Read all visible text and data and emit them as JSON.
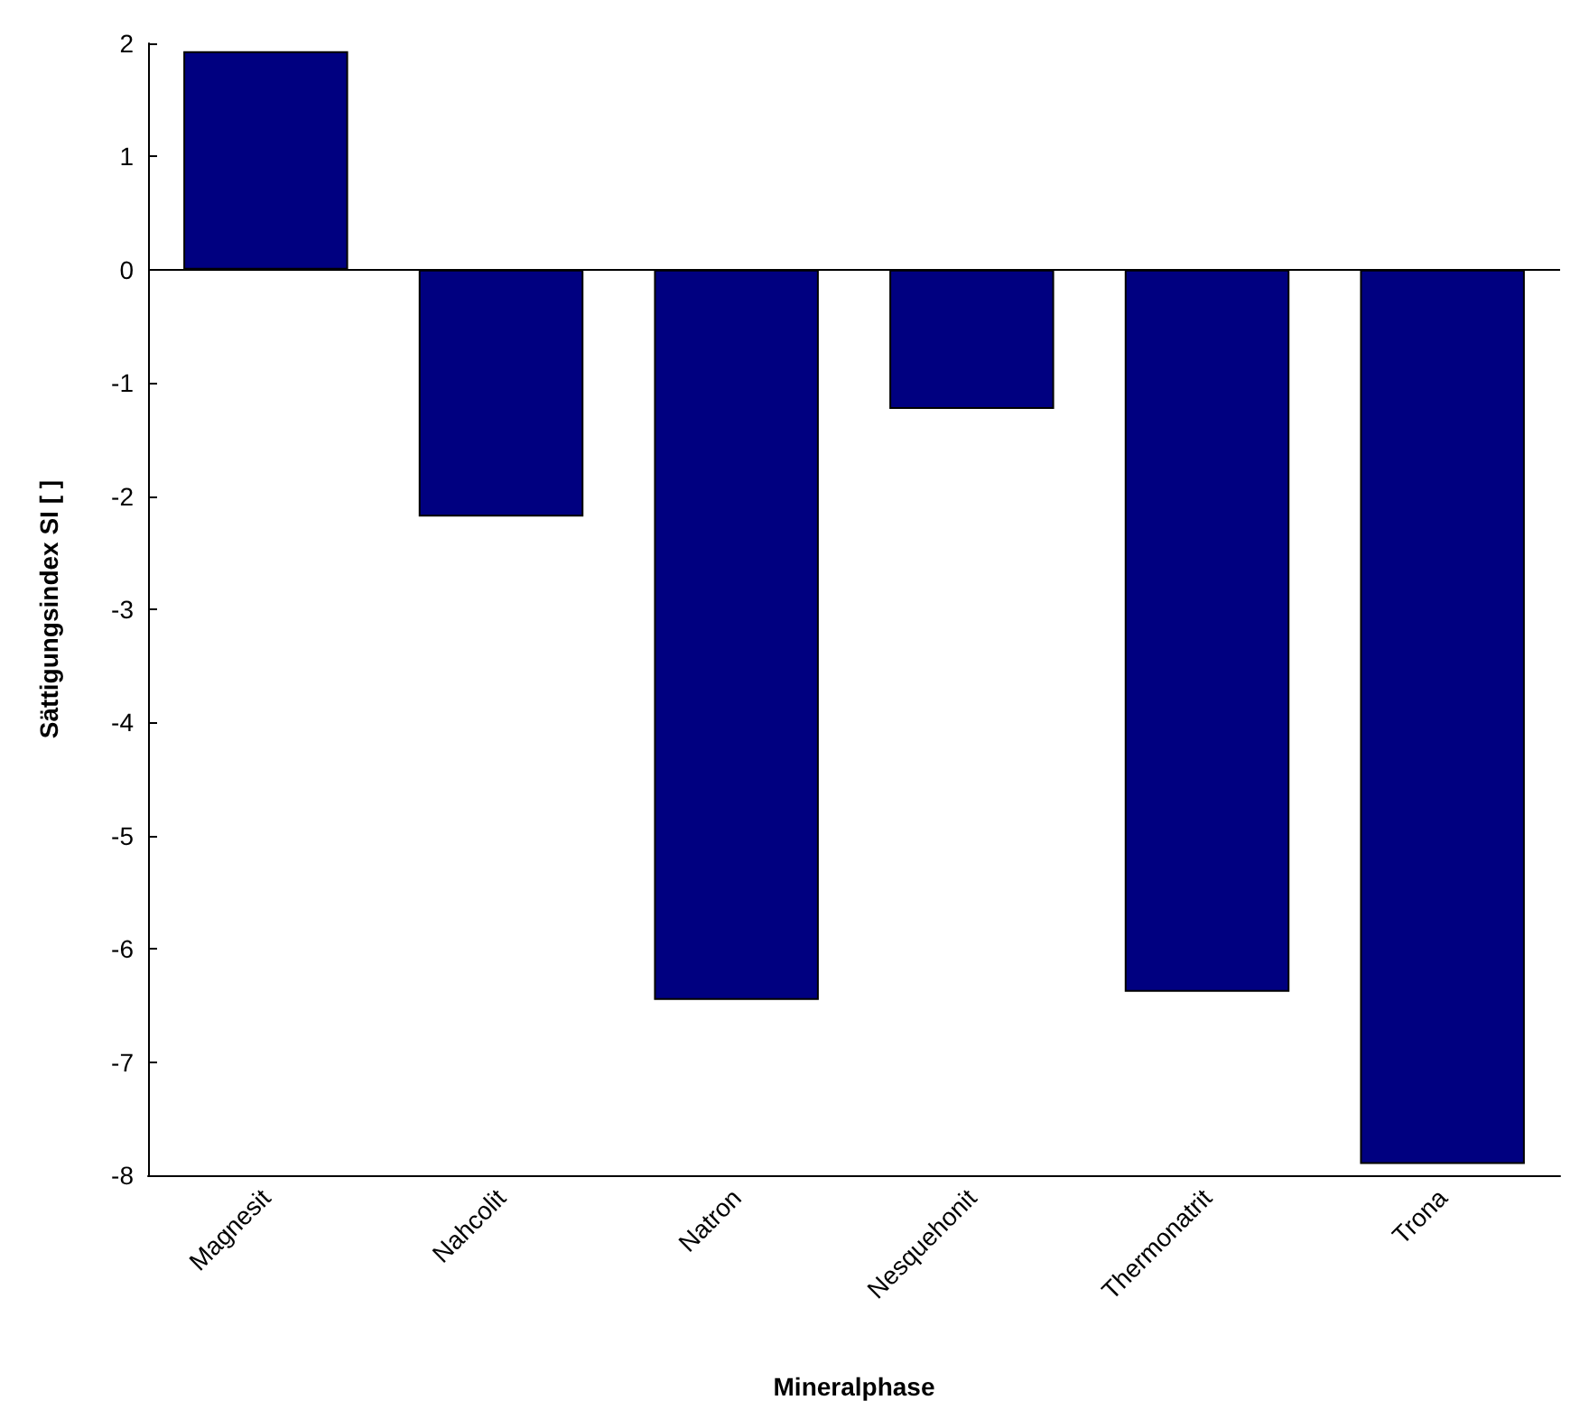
{
  "chart_data": {
    "type": "bar",
    "xlabel": "Mineralphase",
    "ylabel": "Sättigungsindex SI [ ]",
    "categories": [
      "Magnesit",
      "Nahcolit",
      "Natron",
      "Nesquehonit",
      "Thermonatrit",
      "Trona"
    ],
    "values": [
      1.93,
      -2.18,
      -6.45,
      -1.23,
      -6.38,
      -7.9
    ],
    "color": "#000080",
    "ylim": [
      -8,
      2
    ],
    "yticks": [
      -8,
      -7,
      -6,
      -5,
      -4,
      -3,
      -2,
      -1,
      0,
      1,
      2
    ],
    "grid": false,
    "ref_lines": [
      {
        "axis": "y",
        "value": 0
      }
    ]
  }
}
